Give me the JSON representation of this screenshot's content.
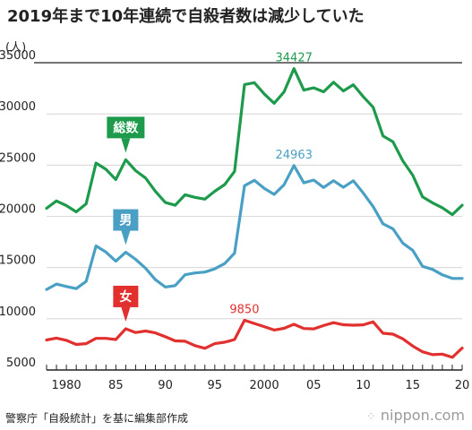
{
  "title": "2019年まで10年連続で自殺者数は減少していた",
  "unit": "(人)",
  "source": "警察庁「自殺統計」を基に編集部作成",
  "brand": "nippon.com",
  "colors": {
    "total": "#1e9a4c",
    "male": "#4aa0c4",
    "female": "#e2302f",
    "axis": "#222222"
  },
  "chart_data": {
    "type": "line",
    "x": [
      1978,
      1979,
      1980,
      1981,
      1982,
      1983,
      1984,
      1985,
      1986,
      1987,
      1988,
      1989,
      1990,
      1991,
      1992,
      1993,
      1994,
      1995,
      1996,
      1997,
      1998,
      1999,
      2000,
      2001,
      2002,
      2003,
      2004,
      2005,
      2006,
      2007,
      2008,
      2009,
      2010,
      2011,
      2012,
      2013,
      2014,
      2015,
      2016,
      2017,
      2018,
      2019,
      2020
    ],
    "ylim": [
      5000,
      35000
    ],
    "yticks": [
      5000,
      10000,
      15000,
      20000,
      25000,
      30000,
      35000
    ],
    "xtick_labels": [
      {
        "x": 1980,
        "label": "1980"
      },
      {
        "x": 1985,
        "label": "85"
      },
      {
        "x": 1990,
        "label": "90"
      },
      {
        "x": 1995,
        "label": "95"
      },
      {
        "x": 2000,
        "label": "2000"
      },
      {
        "x": 2005,
        "label": "05"
      },
      {
        "x": 2010,
        "label": "10"
      },
      {
        "x": 2015,
        "label": "15"
      },
      {
        "x": 2020,
        "label": "20"
      }
    ],
    "series": [
      {
        "name": "総数",
        "key": "total",
        "values": [
          20788,
          21503,
          21048,
          20434,
          21228,
          25202,
          24596,
          23599,
          25524,
          24460,
          23742,
          22436,
          21346,
          21084,
          22104,
          21851,
          21679,
          22445,
          23104,
          24391,
          32863,
          33048,
          31957,
          31042,
          32143,
          34427,
          32325,
          32552,
          32155,
          33093,
          32249,
          32845,
          31690,
          30651,
          27858,
          27283,
          25427,
          24025,
          21897,
          21321,
          20840,
          20169,
          21081
        ],
        "annotation": null
      },
      {
        "name": "男",
        "key": "male",
        "values": [
          12859,
          13386,
          13155,
          12942,
          13654,
          17116,
          16508,
          15624,
          16497,
          15802,
          14934,
          13818,
          13102,
          13242,
          14296,
          14468,
          14560,
          14874,
          15393,
          16416,
          22987,
          23512,
          22727,
          22144,
          23080,
          24963,
          23272,
          23540,
          22813,
          23478,
          22831,
          23472,
          22283,
          20955,
          19273,
          18787,
          17386,
          16681,
          15121,
          14826,
          14290,
          13937,
          13943
        ],
        "annotation": null
      },
      {
        "name": "女",
        "key": "female",
        "values": [
          7929,
          8117,
          7893,
          7492,
          7574,
          8086,
          8088,
          7975,
          9027,
          8658,
          8808,
          8618,
          8244,
          7842,
          7808,
          7383,
          7119,
          7571,
          7711,
          7975,
          9850,
          9536,
          9230,
          8898,
          9063,
          9464,
          9053,
          9012,
          9342,
          9615,
          9418,
          9373,
          9407,
          9696,
          8585,
          8496,
          8041,
          7344,
          6776,
          6495,
          6550,
          6232,
          7138
        ],
        "annotation": null
      }
    ],
    "peak_labels": [
      {
        "series": "total",
        "x": 2003,
        "label": "34427"
      },
      {
        "series": "male",
        "x": 2003,
        "label": "24963"
      },
      {
        "series": "female",
        "x": 1998,
        "label": "9850"
      }
    ],
    "legend_badges": [
      {
        "series": "total",
        "label": "総数",
        "anchor_x": 1986
      },
      {
        "series": "male",
        "label": "男",
        "anchor_x": 1986
      },
      {
        "series": "female",
        "label": "女",
        "anchor_x": 1986
      }
    ]
  }
}
